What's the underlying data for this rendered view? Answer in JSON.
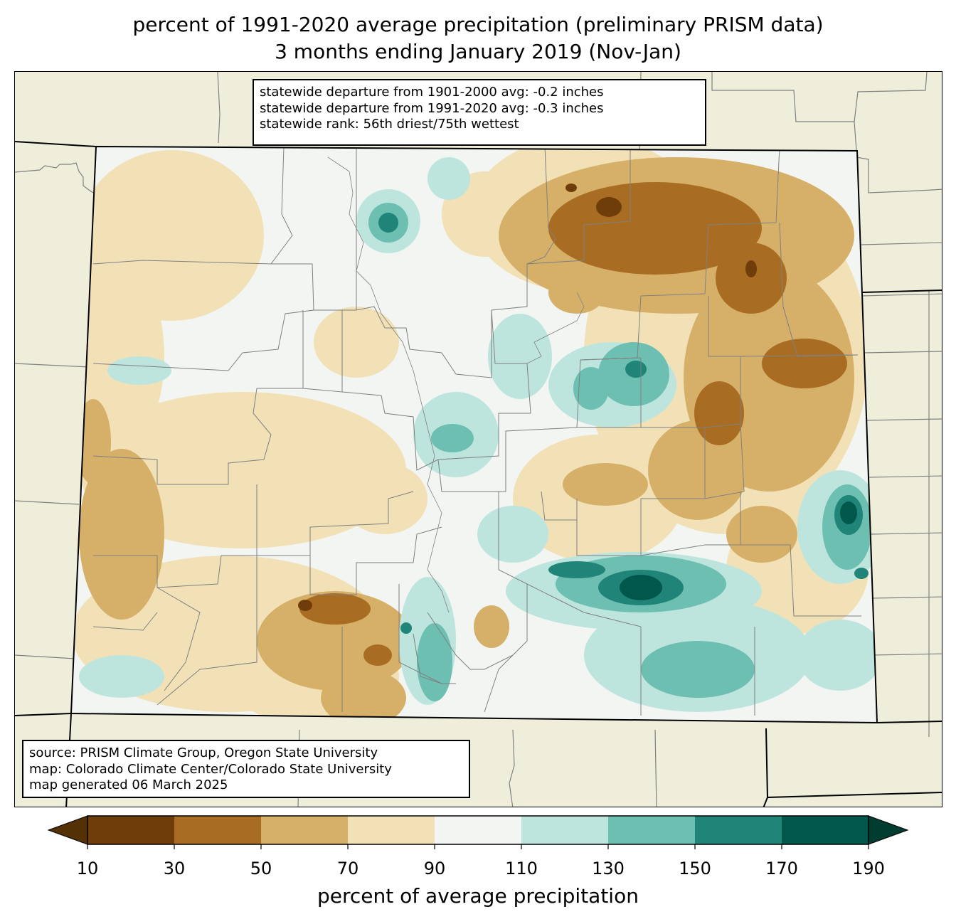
{
  "title": {
    "line1": "percent of 1991-2020 average precipitation (preliminary PRISM data)",
    "line2": "3 months ending January 2019 (Nov-Jan)"
  },
  "stats": {
    "line1": "statewide departure from 1901-2000 avg: -0.2 inches",
    "line2": "statewide departure from 1991-2020 avg: -0.3 inches",
    "line3": "statewide rank: 56th driest/75th wettest"
  },
  "source": {
    "line1": "source: PRISM Climate Group, Oregon State University",
    "line2": "map: Colorado Climate Center/Colorado State University",
    "line3": "map generated 06 March 2025"
  },
  "colorbar": {
    "label": "percent of average precipitation",
    "ticks": [
      "10",
      "30",
      "50",
      "70",
      "90",
      "110",
      "130",
      "150",
      "170",
      "190"
    ],
    "under_color": "#543005",
    "over_color": "#003c30",
    "bin_colors": [
      "#6f3d0a",
      "#a86d22",
      "#d6b068",
      "#f2e1b6",
      "#f3f5f3",
      "#bde5de",
      "#6dbfb1",
      "#208478",
      "#00574c"
    ]
  },
  "map_colors": {
    "background": "#efeedb",
    "boundaries": "#808080",
    "state_outline": "#000000"
  }
}
